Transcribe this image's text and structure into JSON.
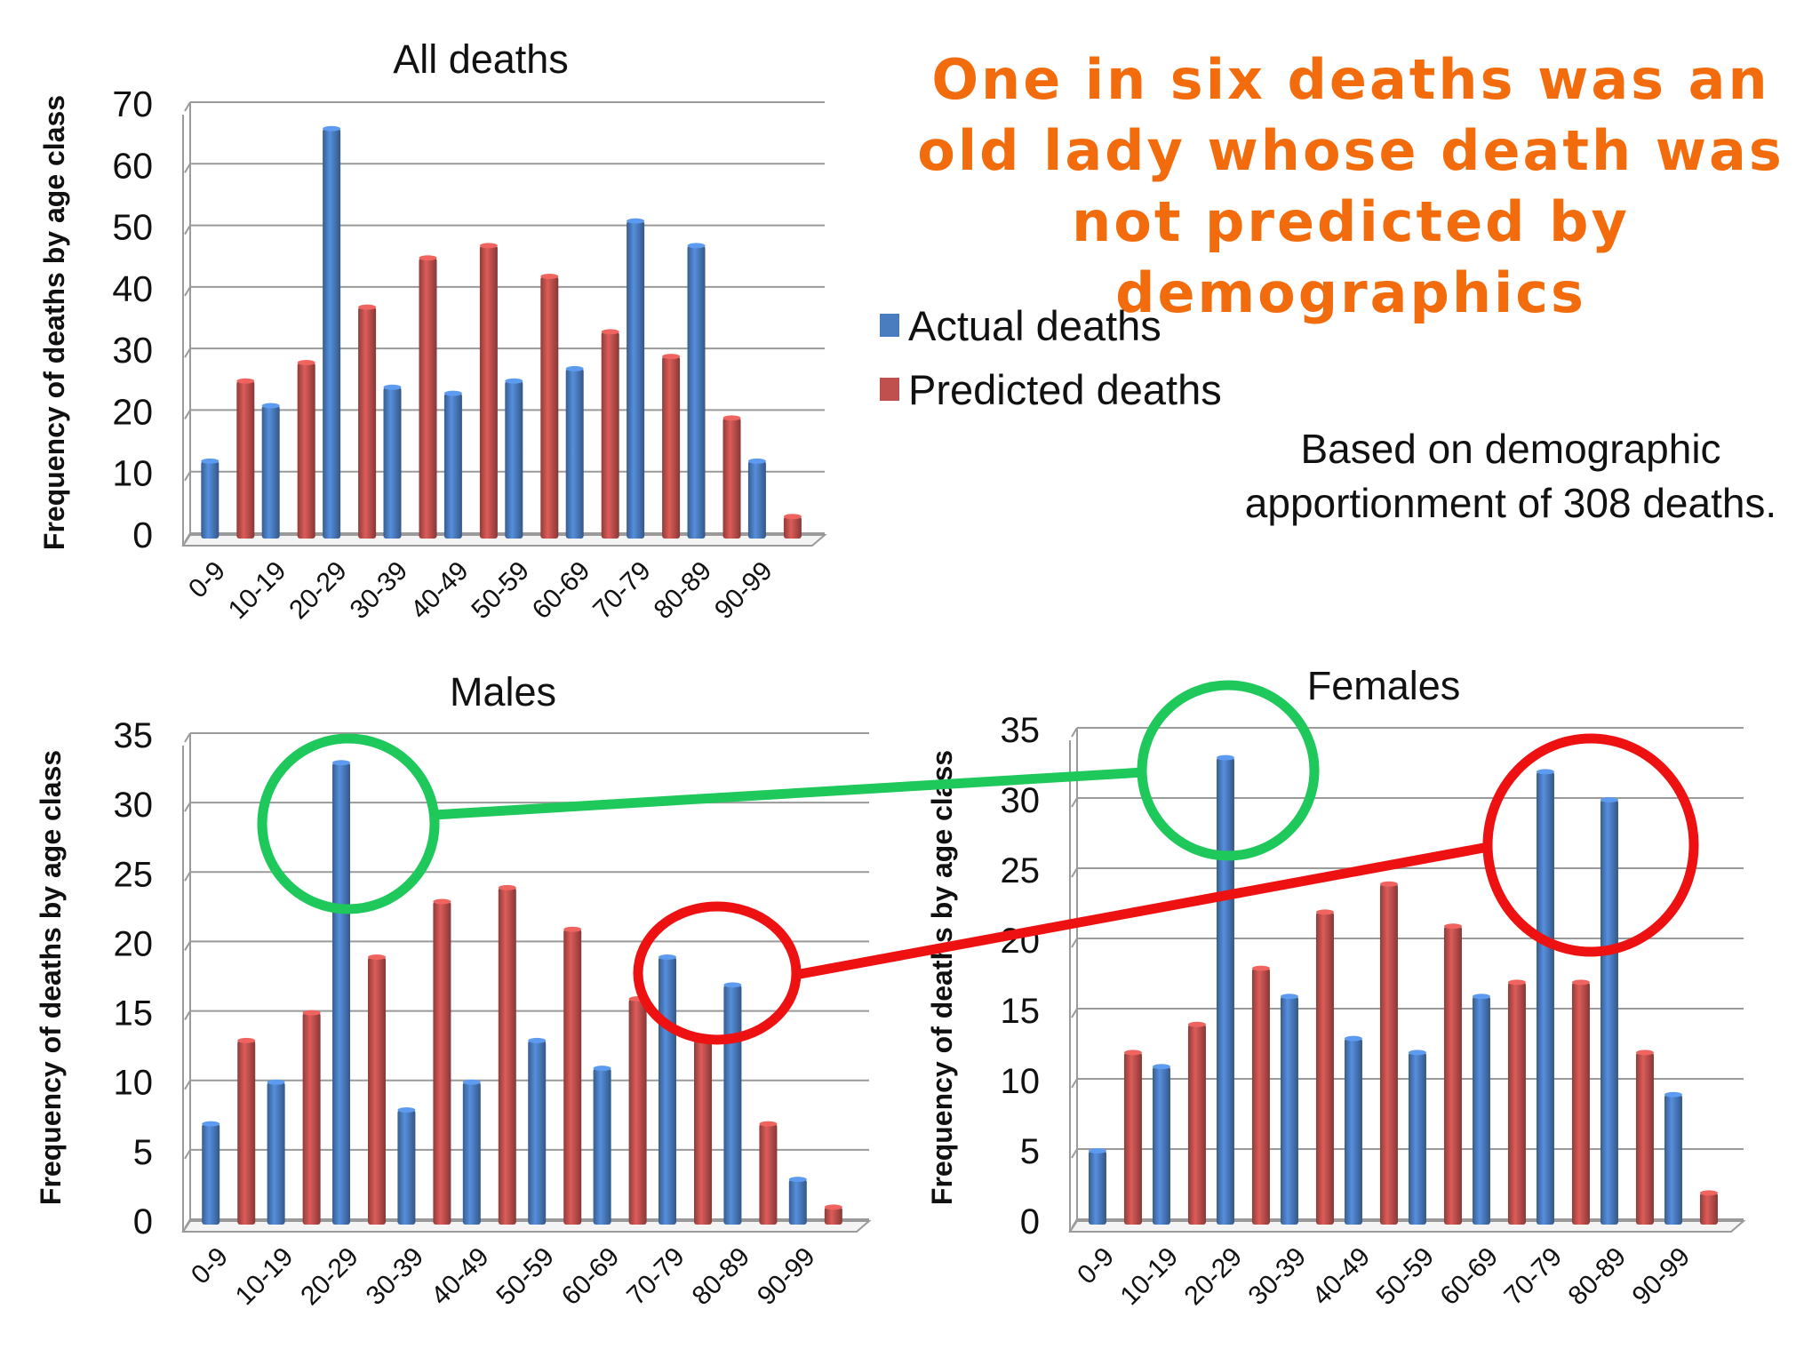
{
  "headline": "One in six deaths was an old lady whose death was not predicted by demographics",
  "note": "Based on demographic apportionment of 308 deaths.",
  "legend": {
    "actual": "Actual deaths",
    "predicted": "Predicted deaths"
  },
  "colors": {
    "actual": "#4a7cc0",
    "predicted": "#c0504d",
    "headline": "#f26c0d",
    "highlight_green": "#1ec85a",
    "highlight_red": "#ee1111"
  },
  "chart_data": [
    {
      "type": "bar",
      "title": "All deaths",
      "ylabel": "Frequency of deaths by age class",
      "xlabel": "",
      "ylim": [
        0,
        70
      ],
      "yticks": [
        "0",
        "10",
        "20",
        "30",
        "40",
        "50",
        "60",
        "70"
      ],
      "categories": [
        "0-9",
        "10-19",
        "20-29",
        "30-39",
        "40-49",
        "50-59",
        "60-69",
        "70-79",
        "80-89",
        "90-99"
      ],
      "series": [
        {
          "name": "Actual deaths",
          "values": [
            12,
            21,
            66,
            24,
            23,
            25,
            27,
            51,
            47,
            12
          ]
        },
        {
          "name": "Predicted deaths",
          "values": [
            25,
            28,
            37,
            45,
            47,
            42,
            33,
            29,
            19,
            3
          ]
        }
      ],
      "grid": true
    },
    {
      "type": "bar",
      "title": "Males",
      "ylabel": "Frequency of deaths by age class",
      "xlabel": "",
      "ylim": [
        0,
        35
      ],
      "yticks": [
        "0",
        "5",
        "10",
        "15",
        "20",
        "25",
        "30",
        "35"
      ],
      "categories": [
        "0-9",
        "10-19",
        "20-29",
        "30-39",
        "40-49",
        "50-59",
        "60-69",
        "70-79",
        "80-89",
        "90-99"
      ],
      "series": [
        {
          "name": "Actual deaths",
          "values": [
            7,
            10,
            33,
            8,
            10,
            13,
            11,
            19,
            17,
            3
          ]
        },
        {
          "name": "Predicted deaths",
          "values": [
            13,
            15,
            19,
            23,
            24,
            21,
            16,
            13,
            7,
            1
          ]
        }
      ],
      "grid": true
    },
    {
      "type": "bar",
      "title": "Females",
      "ylabel": "Frequency of deaths by age class",
      "xlabel": "",
      "ylim": [
        0,
        35
      ],
      "yticks": [
        "0",
        "5",
        "10",
        "15",
        "20",
        "25",
        "30",
        "35"
      ],
      "categories": [
        "0-9",
        "10-19",
        "20-29",
        "30-39",
        "40-49",
        "50-59",
        "60-69",
        "70-79",
        "80-89",
        "90-99"
      ],
      "series": [
        {
          "name": "Actual deaths",
          "values": [
            5,
            11,
            33,
            16,
            13,
            12,
            16,
            32,
            30,
            9
          ]
        },
        {
          "name": "Predicted deaths",
          "values": [
            12,
            14,
            18,
            22,
            24,
            21,
            17,
            17,
            12,
            2
          ]
        }
      ],
      "grid": true
    }
  ]
}
